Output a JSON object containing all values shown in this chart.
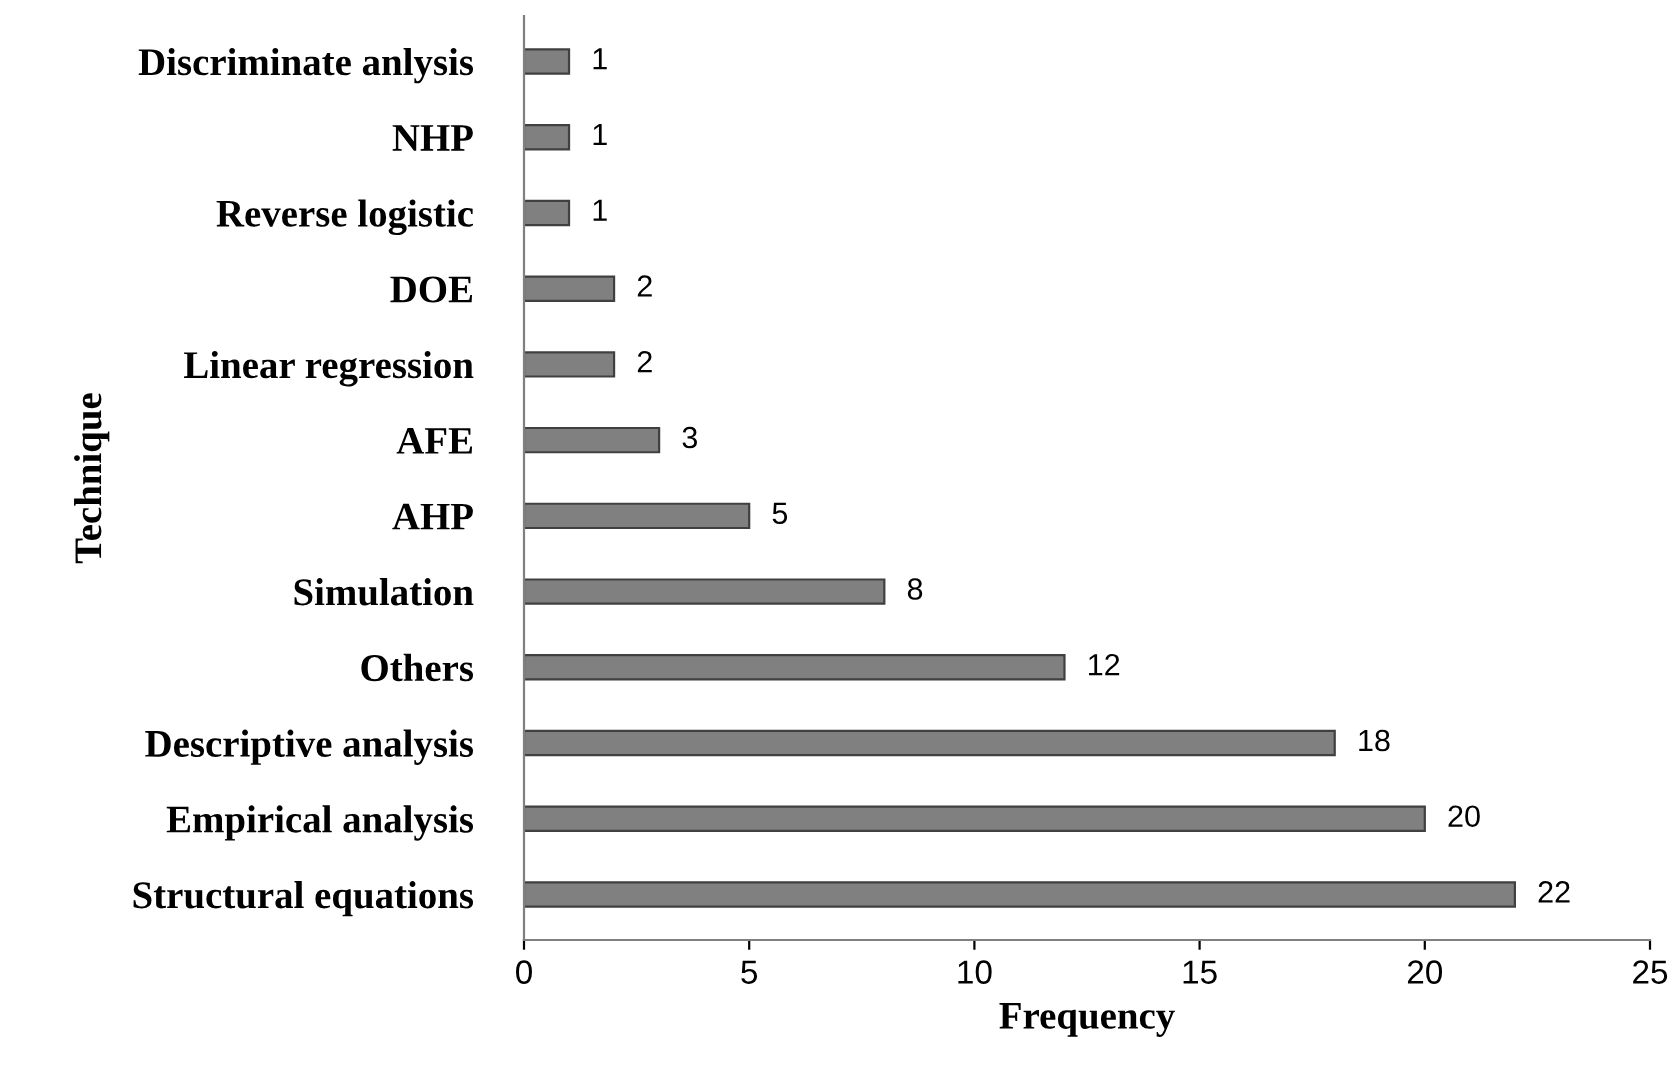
{
  "chart_data": {
    "type": "bar",
    "orientation": "horizontal",
    "xlabel": "Frequency",
    "ylabel": "Technique",
    "categories": [
      "Discriminate anlysis",
      "NHP",
      "Reverse logistic",
      "DOE",
      "Linear regression",
      "AFE",
      "AHP",
      "Simulation",
      "Others",
      "Descriptive analysis",
      "Empirical analysis",
      "Structural equations"
    ],
    "values": [
      1,
      1,
      1,
      2,
      2,
      3,
      5,
      8,
      12,
      18,
      20,
      22
    ],
    "color": "#808080",
    "data_labels": true,
    "grid": false,
    "legend": false,
    "xlim": [
      0,
      25
    ],
    "xticks": [
      0,
      5,
      10,
      15,
      20,
      25
    ]
  }
}
